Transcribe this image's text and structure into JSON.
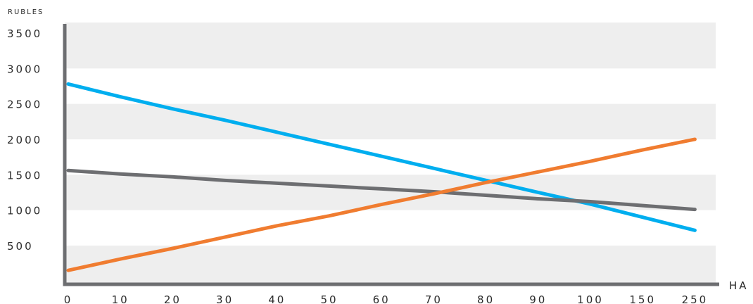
{
  "chart_data": {
    "type": "line",
    "ylabel": "RUBLES",
    "xlabel": "HA",
    "categories": [
      "0",
      "10",
      "20",
      "30",
      "40",
      "50",
      "60",
      "70",
      "80",
      "90",
      "100",
      "150",
      "250"
    ],
    "y_ticks": [
      "500",
      "1000",
      "1500",
      "2000",
      "2500",
      "3000",
      "3500"
    ],
    "ylim": [
      0,
      3500
    ],
    "grid": "alternating horizontal bands",
    "legend": "none",
    "series": [
      {
        "color": "#00AEEF",
        "values": [
          2780,
          2600,
          2430,
          2270,
          2100,
          1930,
          1760,
          1590,
          1420,
          1250,
          1085,
          900,
          715
        ]
      },
      {
        "color": "#6D6E71",
        "values": [
          1560,
          1510,
          1470,
          1420,
          1380,
          1340,
          1300,
          1260,
          1210,
          1160,
          1120,
          1065,
          1010
        ]
      },
      {
        "color": "#F07C30",
        "values": [
          150,
          310,
          460,
          620,
          780,
          920,
          1080,
          1230,
          1390,
          1540,
          1690,
          1850,
          2000
        ]
      }
    ],
    "colors": {
      "axis": "#6D6E71",
      "band": "#EEEEEE",
      "text": "#2B2B2B"
    }
  }
}
